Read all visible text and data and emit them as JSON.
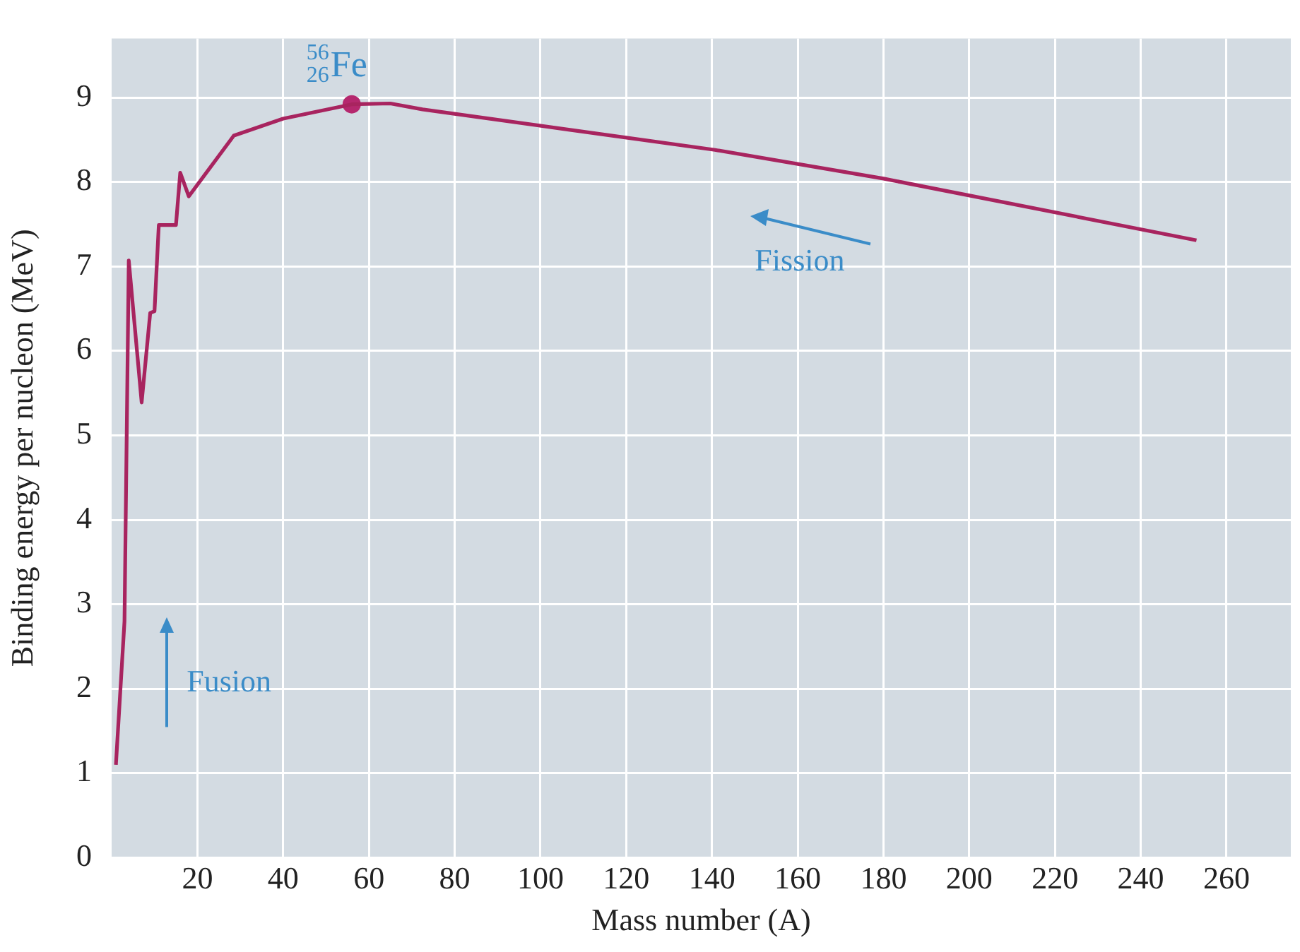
{
  "chart_data": {
    "type": "line",
    "xlabel": "Mass number (A)",
    "ylabel": "Binding energy per nucleon (MeV)",
    "xlim": [
      0,
      275
    ],
    "ylim": [
      0,
      9.7
    ],
    "xticks": [
      20,
      40,
      60,
      80,
      100,
      120,
      140,
      160,
      180,
      200,
      220,
      240,
      260
    ],
    "yticks": [
      0,
      1,
      2,
      3,
      4,
      5,
      6,
      7,
      8,
      9
    ],
    "grid": true,
    "legend": false,
    "series": [
      {
        "type": "line",
        "color": "#a8245f",
        "marker": "none",
        "x": [
          1,
          3,
          4,
          7,
          9,
          10,
          11,
          15,
          16,
          18,
          28.5,
          40,
          56,
          65,
          72.5,
          106.6,
          140.7,
          180,
          253
        ],
        "values": [
          1.1,
          2.8,
          7.07,
          5.39,
          6.45,
          6.47,
          7.49,
          7.49,
          8.11,
          7.83,
          8.55,
          8.75,
          8.92,
          8.93,
          8.86,
          8.62,
          8.38,
          8.04,
          7.31
        ]
      },
      {
        "type": "scatter",
        "color": "#b5286e",
        "marker": "circle",
        "x": [
          56
        ],
        "values": [
          8.92
        ]
      }
    ],
    "annotations": [
      {
        "text": "$^{56}$$_{26}$Fe",
        "x": 56,
        "y": 8.92
      },
      "Fusion",
      "Fission"
    ]
  }
}
